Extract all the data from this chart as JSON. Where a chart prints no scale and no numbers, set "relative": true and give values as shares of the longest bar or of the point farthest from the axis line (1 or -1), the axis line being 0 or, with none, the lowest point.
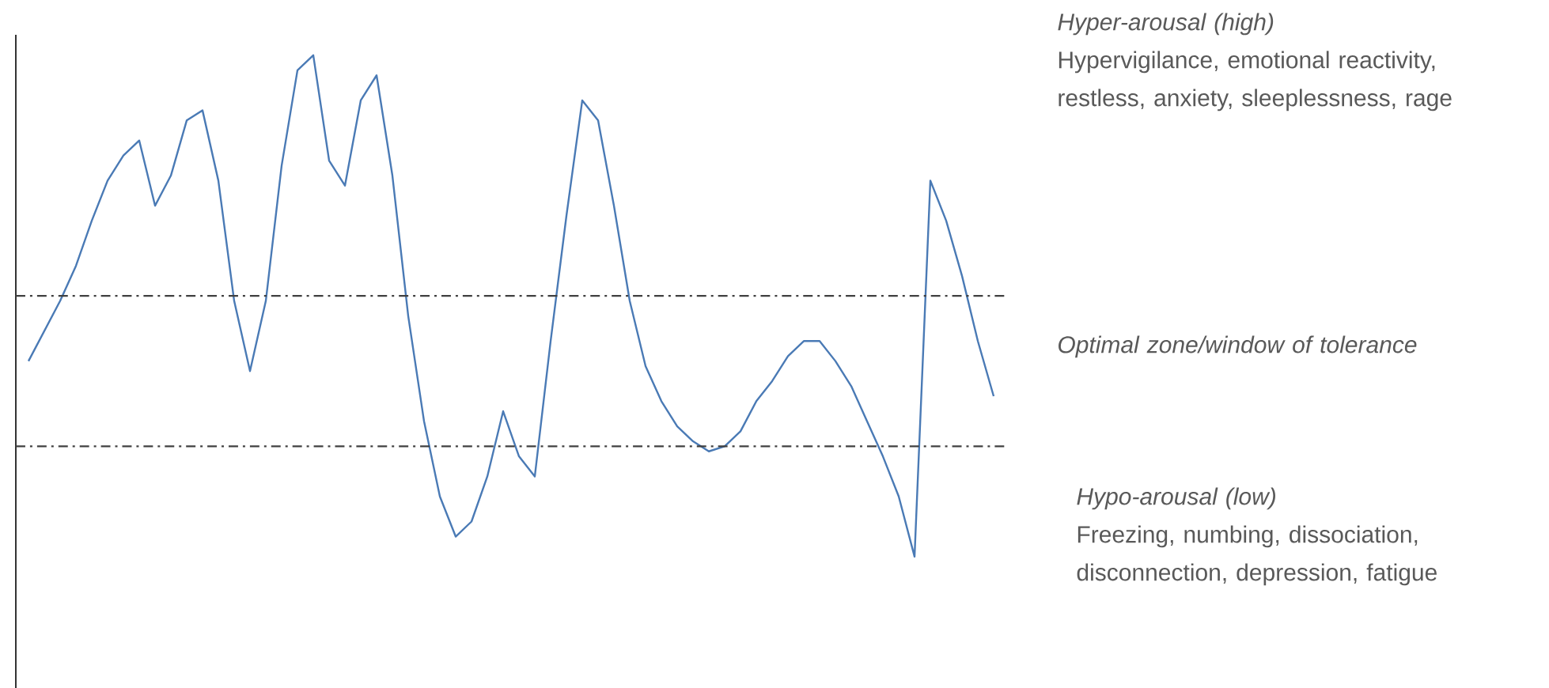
{
  "chart_data": {
    "type": "line",
    "relative": true,
    "color": "#4a7ab5",
    "categories": [
      null,
      null,
      null,
      null,
      null,
      null,
      null,
      null,
      null,
      null,
      null,
      null,
      null,
      null,
      null,
      null,
      null,
      null,
      null,
      null,
      null,
      null,
      null,
      null,
      null,
      null,
      null,
      null,
      null,
      null,
      null,
      null,
      null,
      null,
      null,
      null,
      null,
      null,
      null,
      null,
      null,
      null,
      null,
      null,
      null,
      null,
      null,
      null,
      null,
      null,
      null,
      null,
      null,
      null,
      null,
      null,
      null,
      null,
      null,
      null,
      null,
      null
    ],
    "values": [
      0.39,
      0.45,
      0.51,
      0.58,
      0.67,
      0.75,
      0.8,
      0.83,
      0.7,
      0.76,
      0.87,
      0.89,
      0.75,
      0.51,
      0.37,
      0.51,
      0.78,
      0.97,
      1.0,
      0.79,
      0.74,
      0.91,
      0.96,
      0.76,
      0.48,
      0.27,
      0.12,
      0.04,
      0.07,
      0.16,
      0.29,
      0.2,
      0.16,
      0.43,
      0.68,
      0.91,
      0.87,
      0.7,
      0.51,
      0.38,
      0.31,
      0.26,
      0.23,
      0.21,
      0.22,
      0.25,
      0.31,
      0.35,
      0.4,
      0.43,
      0.43,
      0.39,
      0.34,
      0.27,
      0.2,
      0.12,
      0.0,
      0.75,
      0.67,
      0.56,
      0.43,
      0.32
    ],
    "ref_lines": [
      {
        "axis": "y",
        "value": 0.52,
        "color": "#404040",
        "line_style": "dashdot"
      },
      {
        "axis": "y",
        "value": 0.22,
        "color": "#404040",
        "line_style": "dashdot"
      }
    ],
    "annotations": [
      "*Hyper-arousal (high)*",
      "Hypervigilance, emotional reactivity, restless, anxiety, sleeplessness, rage",
      "*Optimal zone/window of tolerance*",
      "*Hypo-arousal (low)*",
      "Freezing, numbing, dissociation, disconnection, depression, fatigue"
    ]
  }
}
